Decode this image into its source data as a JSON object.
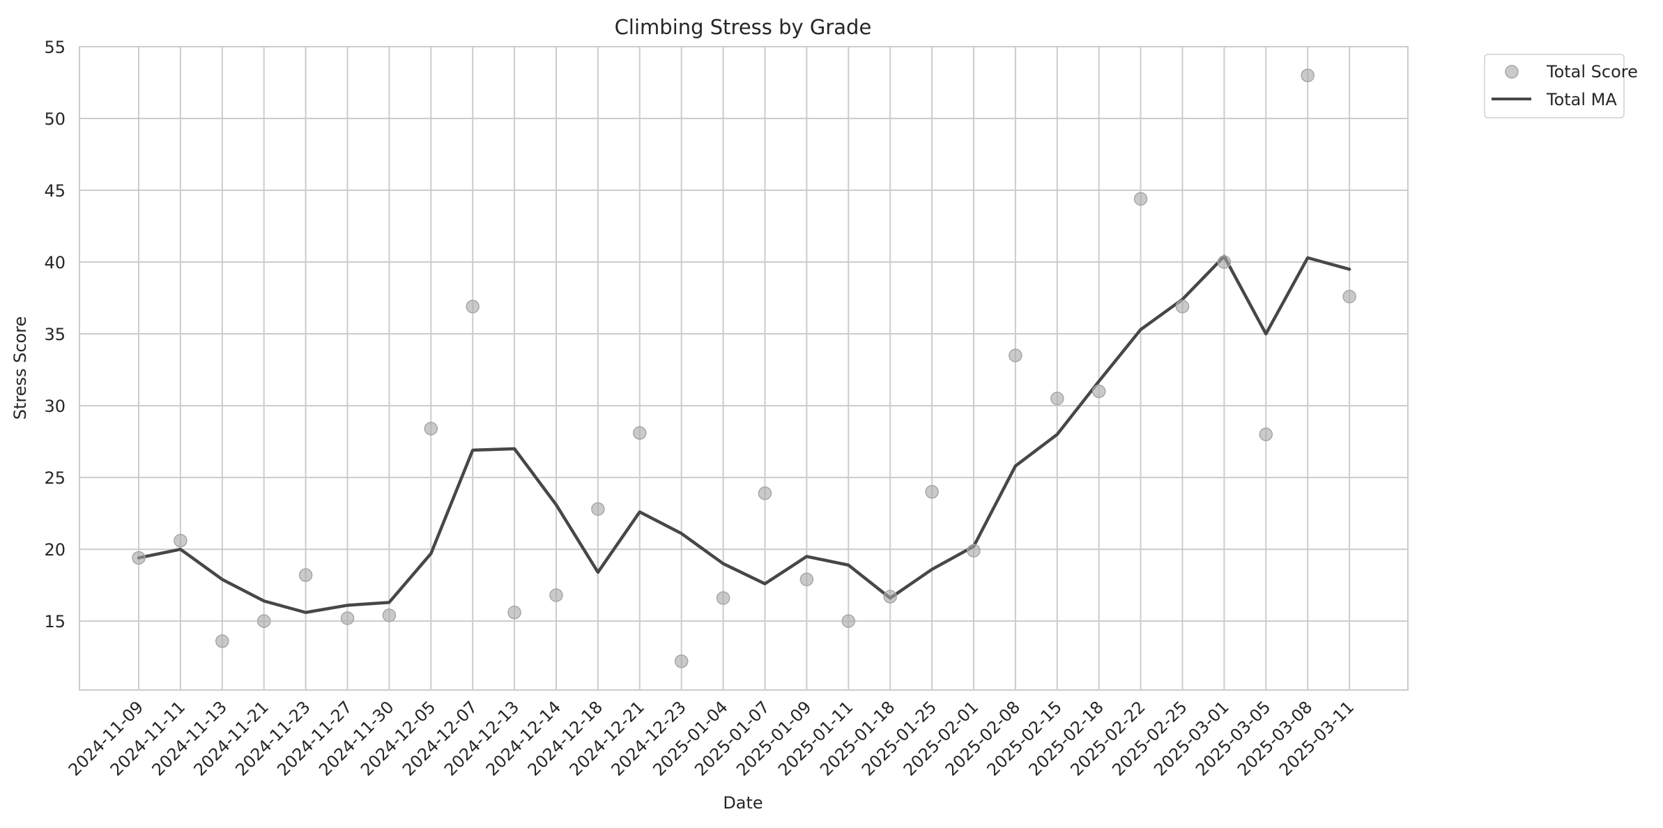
{
  "chart_data": {
    "type": "line",
    "title": "Climbing Stress by Grade",
    "xlabel": "Date",
    "ylabel": "Stress Score",
    "ylim": [
      10.2,
      55
    ],
    "yticks": [
      15,
      20,
      25,
      30,
      35,
      40,
      45,
      50,
      55
    ],
    "grid": true,
    "legend_position": "outside-top-right",
    "categories": [
      "2024-11-09",
      "2024-11-11",
      "2024-11-13",
      "2024-11-21",
      "2024-11-23",
      "2024-11-27",
      "2024-11-30",
      "2024-12-05",
      "2024-12-07",
      "2024-12-13",
      "2024-12-14",
      "2024-12-18",
      "2024-12-21",
      "2024-12-23",
      "2025-01-04",
      "2025-01-07",
      "2025-01-09",
      "2025-01-11",
      "2025-01-18",
      "2025-01-25",
      "2025-02-01",
      "2025-02-08",
      "2025-02-15",
      "2025-02-18",
      "2025-02-22",
      "2025-02-25",
      "2025-03-01",
      "2025-03-05",
      "2025-03-08",
      "2025-03-11"
    ],
    "series": [
      {
        "name": "Total Score",
        "kind": "scatter",
        "color": "#a6a6a6",
        "values": [
          19.4,
          20.6,
          13.6,
          15.0,
          18.2,
          15.2,
          15.4,
          28.4,
          36.9,
          15.6,
          16.8,
          22.8,
          28.1,
          12.2,
          16.6,
          23.9,
          17.9,
          15.0,
          16.7,
          24.0,
          19.9,
          33.5,
          30.5,
          31.0,
          44.4,
          36.9,
          40.0,
          28.0,
          53.0,
          37.6
        ]
      },
      {
        "name": "Total MA",
        "kind": "line",
        "color": "#474747",
        "values": [
          19.4,
          20.0,
          17.9,
          16.4,
          15.6,
          16.1,
          16.3,
          19.7,
          26.9,
          27.0,
          23.1,
          18.4,
          22.6,
          21.1,
          19.0,
          17.6,
          19.5,
          18.9,
          16.6,
          18.6,
          20.2,
          25.8,
          28.0,
          31.7,
          35.3,
          37.4,
          40.4,
          35.0,
          40.3,
          39.5
        ]
      }
    ]
  }
}
